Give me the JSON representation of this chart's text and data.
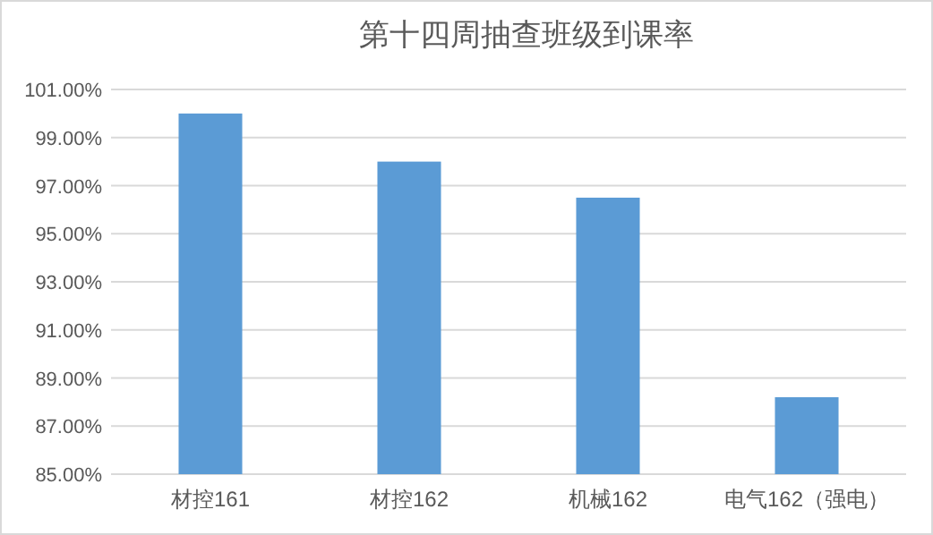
{
  "chart_data": {
    "type": "bar",
    "title": "第十四周抽查班级到课率",
    "categories": [
      "材控161",
      "材控162",
      "机械162",
      "电气162（强电）"
    ],
    "values": [
      100,
      98,
      96.5,
      88.2
    ],
    "color": "#5b9bd5",
    "ylim": [
      85,
      101
    ],
    "yticks": [
      {
        "value": 85,
        "label": "85.00%"
      },
      {
        "value": 87,
        "label": "87.00%"
      },
      {
        "value": 89,
        "label": "89.00%"
      },
      {
        "value": 91,
        "label": "91.00%"
      },
      {
        "value": 93,
        "label": "93.00%"
      },
      {
        "value": 95,
        "label": "95.00%"
      },
      {
        "value": 97,
        "label": "97.00%"
      },
      {
        "value": 99,
        "label": "99.00%"
      },
      {
        "value": 101,
        "label": "101.00%"
      }
    ],
    "grid": "y"
  }
}
